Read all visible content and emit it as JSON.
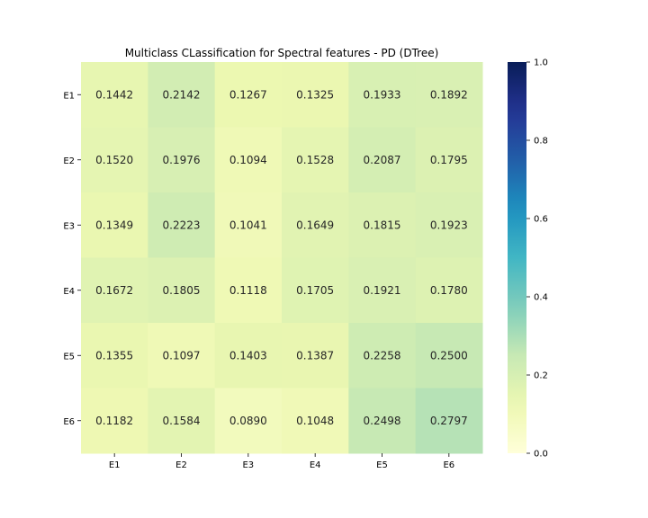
{
  "chart_data": {
    "type": "heatmap",
    "title": "Multiclass CLassification for Spectral features - PD (DTree)",
    "x_categories": [
      "E1",
      "E2",
      "E3",
      "E4",
      "E5",
      "E6"
    ],
    "y_categories": [
      "E1",
      "E2",
      "E3",
      "E4",
      "E5",
      "E6"
    ],
    "values": [
      [
        0.1442,
        0.2142,
        0.1267,
        0.1325,
        0.1933,
        0.1892
      ],
      [
        0.152,
        0.1976,
        0.1094,
        0.1528,
        0.2087,
        0.1795
      ],
      [
        0.1349,
        0.2223,
        0.1041,
        0.1649,
        0.1815,
        0.1923
      ],
      [
        0.1672,
        0.1805,
        0.1118,
        0.1705,
        0.1921,
        0.178
      ],
      [
        0.1355,
        0.1097,
        0.1403,
        0.1387,
        0.2258,
        0.25
      ],
      [
        0.1182,
        0.1584,
        0.089,
        0.1048,
        0.2498,
        0.2797
      ]
    ],
    "value_format": "0.0000",
    "colormap": "YlGnBu",
    "color_range": [
      0.0,
      1.0
    ],
    "colorbar_ticks": [
      "0.0",
      "0.2",
      "0.4",
      "0.6",
      "0.8",
      "1.0"
    ],
    "grid": false,
    "legend": "colorbar-right"
  }
}
